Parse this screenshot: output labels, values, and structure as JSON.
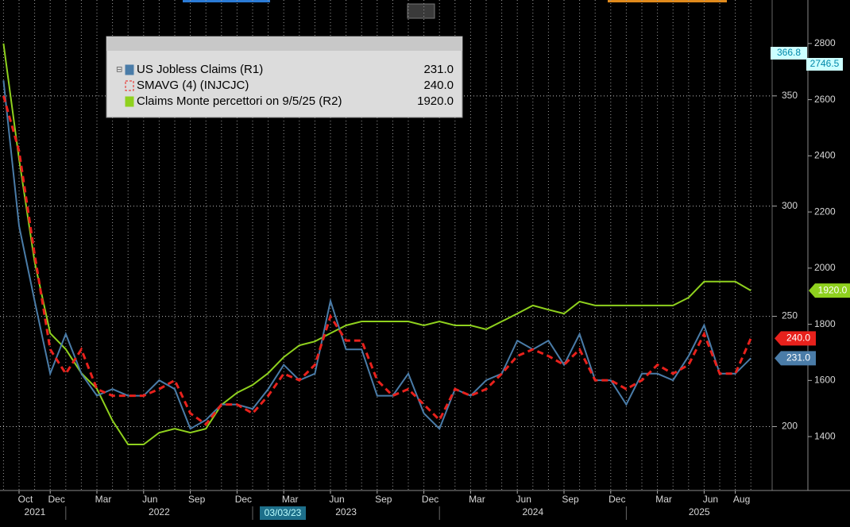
{
  "chart_data": {
    "type": "line",
    "x": [
      "2021-09",
      "2021-10",
      "2021-11",
      "2021-12",
      "2022-01",
      "2022-02",
      "2022-03",
      "2022-04",
      "2022-05",
      "2022-06",
      "2022-07",
      "2022-08",
      "2022-09",
      "2022-10",
      "2022-11",
      "2022-12",
      "2023-01",
      "2023-02",
      "2023-03",
      "2023-04",
      "2023-05",
      "2023-06",
      "2023-07",
      "2023-08",
      "2023-09",
      "2023-10",
      "2023-11",
      "2023-12",
      "2024-01",
      "2024-02",
      "2024-03",
      "2024-04",
      "2024-05",
      "2024-06",
      "2024-07",
      "2024-08",
      "2024-09",
      "2024-10",
      "2024-11",
      "2024-12",
      "2025-01",
      "2025-02",
      "2025-03",
      "2025-04",
      "2025-05",
      "2025-06",
      "2025-07",
      "2025-08",
      "2025-09"
    ],
    "series": [
      {
        "name": "US Jobless Claims  (R1)",
        "last_label": "231.0",
        "color": "#4a7ca8",
        "axis": "y",
        "values": [
          357,
          291,
          257,
          224,
          242,
          224,
          214,
          217,
          214,
          214,
          221,
          217,
          199,
          203,
          210,
          210,
          208,
          217,
          228,
          221,
          224,
          257,
          235,
          235,
          214,
          214,
          224,
          206,
          199,
          217,
          214,
          221,
          224,
          239,
          235,
          239,
          228,
          242,
          221,
          221,
          210,
          224,
          224,
          221,
          232,
          246,
          224,
          224,
          231
        ]
      },
      {
        "name": "SMAVG (4) (INJCJC)",
        "last_label": "240.0",
        "color": "#e8211c",
        "dashed": true,
        "axis": "y",
        "values": [
          350,
          325,
          278,
          235,
          224,
          235,
          217,
          214,
          214,
          214,
          217,
          221,
          206,
          201,
          210,
          210,
          206,
          214,
          224,
          221,
          228,
          250,
          239,
          239,
          221,
          214,
          217,
          210,
          203,
          217,
          214,
          217,
          224,
          232,
          235,
          232,
          228,
          235,
          221,
          221,
          217,
          221,
          228,
          224,
          228,
          242,
          224,
          224,
          240
        ]
      },
      {
        "name": "Claims Monte percettori  on 9/5/25 (R2)",
        "last_label": "1920.0",
        "color": "#8fd11e",
        "axis": "y2",
        "values": [
          2800,
          2388,
          2022,
          1768,
          1711,
          1626,
          1570,
          1457,
          1372,
          1372,
          1414,
          1428,
          1414,
          1428,
          1513,
          1556,
          1584,
          1626,
          1683,
          1725,
          1739,
          1768,
          1796,
          1810,
          1810,
          1810,
          1810,
          1796,
          1810,
          1796,
          1796,
          1782,
          1810,
          1838,
          1867,
          1852,
          1838,
          1881,
          1867,
          1867,
          1867,
          1867,
          1867,
          1867,
          1895,
          1952,
          1952,
          1952,
          1920
        ]
      }
    ],
    "ylim": [
      171,
      393.5
    ],
    "yticks": [
      200,
      250,
      300,
      350
    ],
    "y2lim": [
      1208,
      2955
    ],
    "y2ticks": [
      1400,
      1600,
      1800,
      2000,
      2200,
      2400,
      2600,
      2800
    ],
    "xticks": [
      {
        "value": "2021-10",
        "label": "Oct"
      },
      {
        "value": "2021-12",
        "label": "Dec"
      },
      {
        "value": "2022-03",
        "label": "Mar"
      },
      {
        "value": "2022-06",
        "label": "Jun"
      },
      {
        "value": "2022-09",
        "label": "Sep"
      },
      {
        "value": "2022-12",
        "label": "Dec"
      },
      {
        "value": "2023-03",
        "label": "Mar"
      },
      {
        "value": "2023-06",
        "label": "Jun"
      },
      {
        "value": "2023-09",
        "label": "Sep"
      },
      {
        "value": "2023-12",
        "label": "Dec"
      },
      {
        "value": "2024-03",
        "label": "Mar"
      },
      {
        "value": "2024-06",
        "label": "Jun"
      },
      {
        "value": "2024-09",
        "label": "Sep"
      },
      {
        "value": "2024-12",
        "label": "Dec"
      },
      {
        "value": "2025-03",
        "label": "Mar"
      },
      {
        "value": "2025-06",
        "label": "Jun"
      },
      {
        "value": "2025-08",
        "label": "Aug"
      }
    ],
    "year_ticks": [
      "2021",
      "2022",
      "2023",
      "2024",
      "2025"
    ],
    "cursor_labels": [
      "366.8",
      "2746.5"
    ],
    "cursor_date": "03/03/23",
    "grid": true
  }
}
